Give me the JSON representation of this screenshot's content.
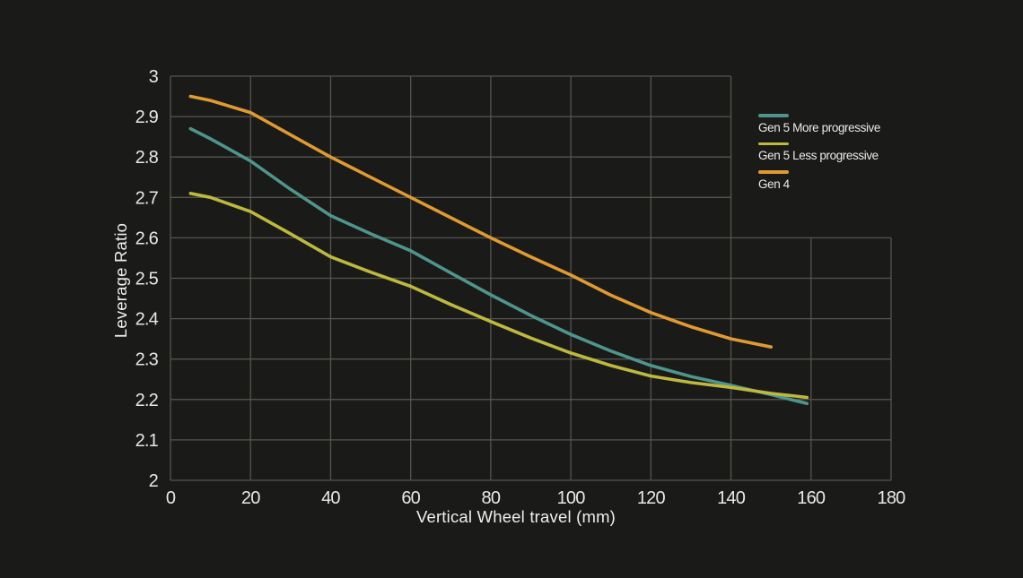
{
  "page": {
    "background_color": "#1a1a18",
    "text_color": "#e9e8e5"
  },
  "chart_data": {
    "type": "line",
    "title": "",
    "xlabel": "Vertical Wheel travel (mm)",
    "ylabel": "Leverage Ratio",
    "xlim": [
      0,
      180
    ],
    "ylim": [
      2,
      3
    ],
    "xticks": [
      0,
      20,
      40,
      60,
      80,
      100,
      120,
      140,
      160,
      180
    ],
    "yticks": [
      2,
      2.1,
      2.2,
      2.3,
      2.4,
      2.5,
      2.6,
      2.7,
      2.8,
      2.9,
      3
    ],
    "grid": {
      "visible": true,
      "color": "#55544f",
      "upper_region_right_clip_x": 140,
      "step_y": 2.6
    },
    "legend": {
      "position": "inside-upper-right"
    },
    "series": [
      {
        "name": "Gen 5 More progressive",
        "color": "#4f948d",
        "x": [
          5,
          10,
          20,
          30,
          40,
          50,
          60,
          70,
          80,
          90,
          100,
          110,
          120,
          130,
          140,
          150,
          159
        ],
        "y": [
          2.87,
          2.845,
          2.79,
          2.72,
          2.655,
          2.61,
          2.568,
          2.513,
          2.459,
          2.408,
          2.361,
          2.32,
          2.284,
          2.257,
          2.235,
          2.212,
          2.19
        ]
      },
      {
        "name": "Gen 5 Less progressive",
        "color": "#bdb840",
        "x": [
          5,
          10,
          20,
          30,
          40,
          50,
          60,
          70,
          80,
          90,
          100,
          110,
          120,
          130,
          140,
          150,
          159
        ],
        "y": [
          2.71,
          2.7,
          2.665,
          2.61,
          2.553,
          2.515,
          2.48,
          2.435,
          2.393,
          2.352,
          2.315,
          2.284,
          2.258,
          2.242,
          2.23,
          2.215,
          2.205
        ]
      },
      {
        "name": "Gen 4",
        "color": "#e09a33",
        "x": [
          5,
          10,
          20,
          30,
          40,
          50,
          60,
          70,
          80,
          90,
          100,
          110,
          120,
          130,
          140,
          150
        ],
        "y": [
          2.95,
          2.94,
          2.91,
          2.855,
          2.8,
          2.75,
          2.7,
          2.65,
          2.6,
          2.553,
          2.508,
          2.458,
          2.415,
          2.38,
          2.35,
          2.33
        ]
      }
    ]
  }
}
